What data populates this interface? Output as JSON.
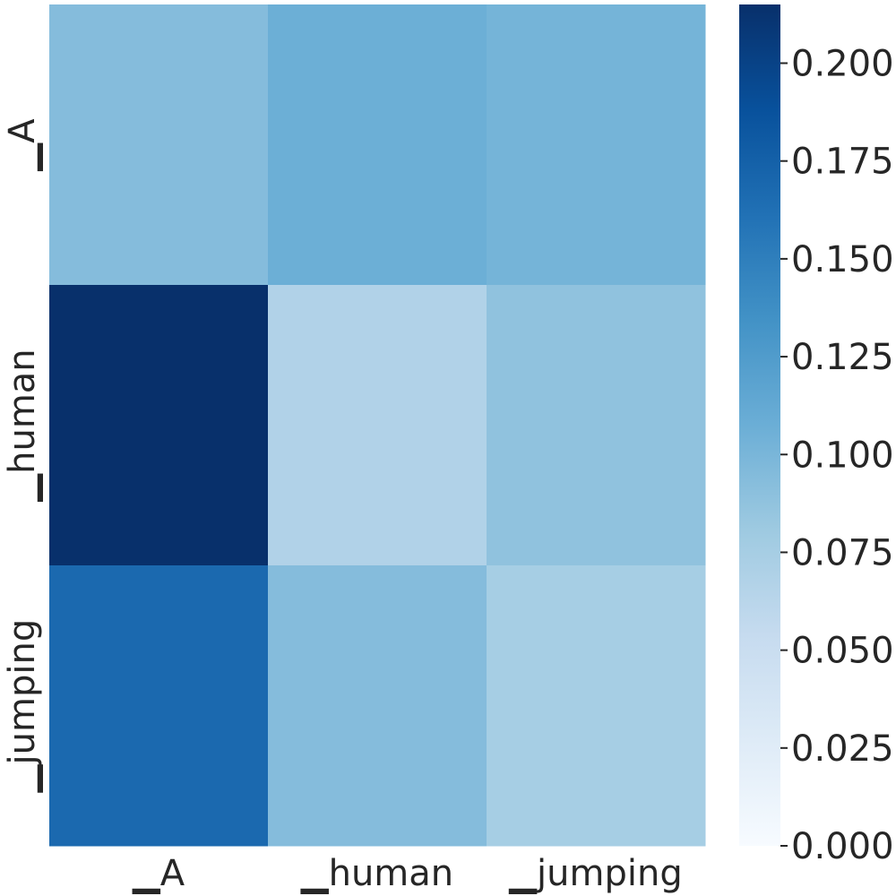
{
  "chart_data": {
    "type": "heatmap",
    "title": "",
    "xlabel": "",
    "ylabel": "",
    "x_categories": [
      "▁A",
      "▁human",
      "▁jumping"
    ],
    "y_categories": [
      "▁A",
      "▁human",
      "▁jumping"
    ],
    "values": [
      [
        0.094,
        0.107,
        0.102
      ],
      [
        0.215,
        0.068,
        0.088
      ],
      [
        0.168,
        0.094,
        0.075
      ]
    ],
    "colormap": "Blues",
    "colorbar": {
      "vmin": 0.0,
      "vmax": 0.215,
      "ticks": [
        0.0,
        0.025,
        0.05,
        0.075,
        0.1,
        0.125,
        0.15,
        0.175,
        0.2
      ],
      "tick_labels": [
        "0.000",
        "0.025",
        "0.050",
        "0.075",
        "0.100",
        "0.125",
        "0.150",
        "0.175",
        "0.200"
      ]
    }
  }
}
